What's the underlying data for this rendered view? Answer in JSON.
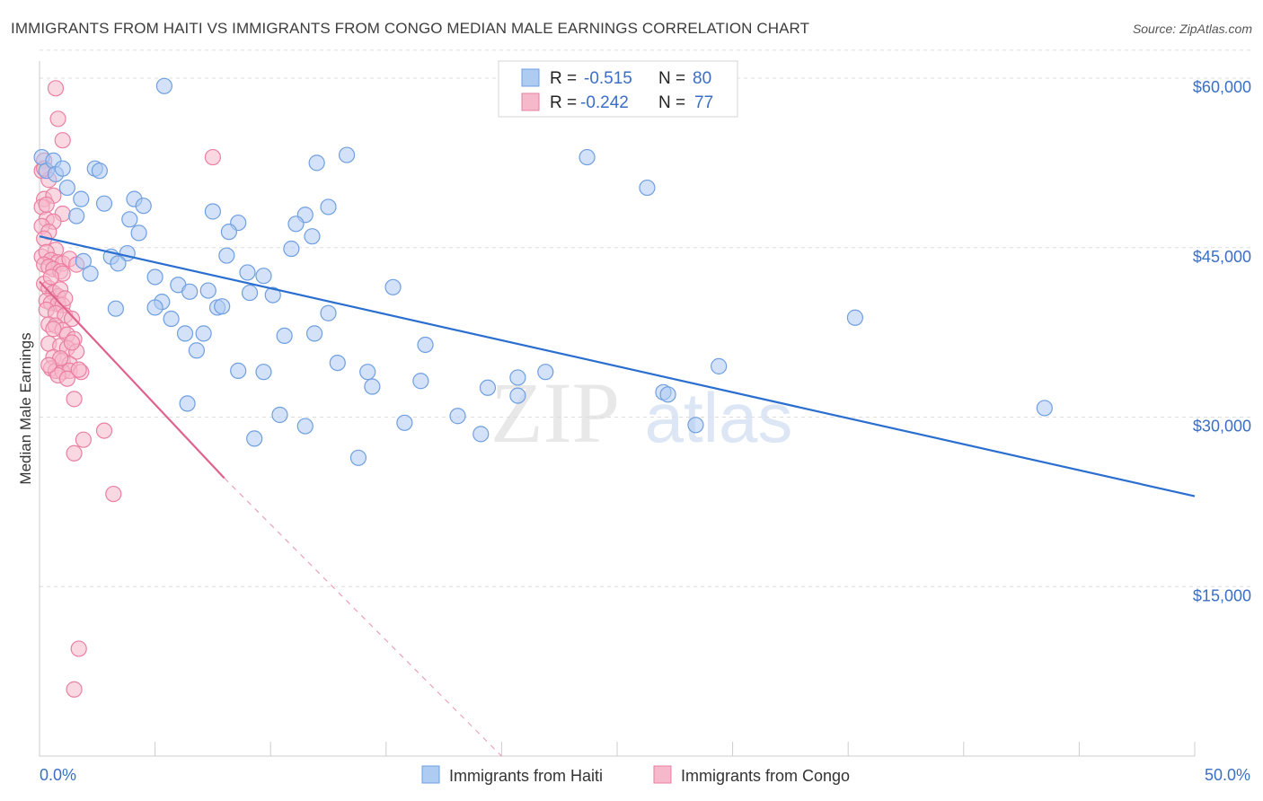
{
  "title": "IMMIGRANTS FROM HAITI VS IMMIGRANTS FROM CONGO MEDIAN MALE EARNINGS CORRELATION CHART",
  "source": "Source: ZipAtlas.com",
  "watermark": {
    "zip": "ZIP",
    "atlas": "atlas"
  },
  "colors": {
    "haiti_fill": "#aecbf2",
    "haiti_stroke": "#6f9fe0",
    "haiti_line": "#2a6fcf",
    "congo_fill": "#f6b8cb",
    "congo_stroke": "#ea7fa2",
    "congo_line": "#e0628c",
    "grid": "#dddddd",
    "axis_text": "#3b6fc4"
  },
  "legend": {
    "rows": [
      {
        "r_label": "R =",
        "r_value": "-0.515",
        "n_label": "N =",
        "n_value": "80"
      },
      {
        "r_label": "R =",
        "r_value": "-0.242",
        "n_label": "N =",
        "n_value": "77"
      }
    ]
  },
  "chart_data": {
    "type": "scatter",
    "title": "IMMIGRANTS FROM HAITI VS IMMIGRANTS FROM CONGO MEDIAN MALE EARNINGS CORRELATION CHART",
    "xlabel": "",
    "ylabel": "Median Male Earnings",
    "xlim": [
      0,
      50
    ],
    "ylim": [
      0,
      62000
    ],
    "x_tick_labels": [
      "0.0%",
      "50.0%"
    ],
    "y_ticks": [
      15000,
      30000,
      45000,
      60000
    ],
    "y_tick_labels": [
      "$15,000",
      "$30,000",
      "$45,000",
      "$60,000"
    ],
    "series": [
      {
        "name": "Immigrants from Haiti",
        "trend": {
          "x": [
            0,
            50
          ],
          "y": [
            46000,
            23000
          ],
          "style": "solid"
        },
        "points": [
          [
            0.1,
            53000
          ],
          [
            0.3,
            51800
          ],
          [
            0.6,
            52700
          ],
          [
            0.7,
            51500
          ],
          [
            1.0,
            52000
          ],
          [
            2.4,
            52000
          ],
          [
            2.6,
            51800
          ],
          [
            5.4,
            59300
          ],
          [
            12.0,
            52500
          ],
          [
            13.3,
            53200
          ],
          [
            23.7,
            53000
          ],
          [
            26.3,
            50300
          ],
          [
            1.2,
            50300
          ],
          [
            1.8,
            49300
          ],
          [
            2.8,
            48900
          ],
          [
            4.1,
            49300
          ],
          [
            4.5,
            48700
          ],
          [
            7.5,
            48200
          ],
          [
            11.5,
            47900
          ],
          [
            12.5,
            48600
          ],
          [
            1.6,
            47800
          ],
          [
            3.9,
            47500
          ],
          [
            8.6,
            47200
          ],
          [
            11.1,
            47100
          ],
          [
            4.3,
            46300
          ],
          [
            8.2,
            46400
          ],
          [
            11.8,
            46000
          ],
          [
            3.8,
            44500
          ],
          [
            8.1,
            44300
          ],
          [
            10.9,
            44900
          ],
          [
            1.9,
            43800
          ],
          [
            3.1,
            44200
          ],
          [
            3.4,
            43600
          ],
          [
            2.2,
            42700
          ],
          [
            9.0,
            42800
          ],
          [
            9.7,
            42500
          ],
          [
            5.0,
            42400
          ],
          [
            6.0,
            41700
          ],
          [
            7.3,
            41200
          ],
          [
            15.3,
            41500
          ],
          [
            6.5,
            41100
          ],
          [
            9.1,
            41000
          ],
          [
            10.1,
            40800
          ],
          [
            5.3,
            40200
          ],
          [
            3.3,
            39600
          ],
          [
            5.0,
            39700
          ],
          [
            7.7,
            39700
          ],
          [
            7.9,
            39800
          ],
          [
            35.3,
            38800
          ],
          [
            12.5,
            39200
          ],
          [
            5.7,
            38700
          ],
          [
            6.3,
            37400
          ],
          [
            7.1,
            37400
          ],
          [
            10.6,
            37200
          ],
          [
            11.9,
            37400
          ],
          [
            16.7,
            36400
          ],
          [
            6.8,
            35900
          ],
          [
            12.9,
            34800
          ],
          [
            8.6,
            34100
          ],
          [
            9.7,
            34000
          ],
          [
            14.2,
            34000
          ],
          [
            20.7,
            33500
          ],
          [
            21.9,
            34000
          ],
          [
            29.4,
            34500
          ],
          [
            16.5,
            33200
          ],
          [
            14.4,
            32700
          ],
          [
            19.4,
            32600
          ],
          [
            20.7,
            31900
          ],
          [
            27.0,
            32200
          ],
          [
            27.2,
            32000
          ],
          [
            6.4,
            31200
          ],
          [
            10.4,
            30200
          ],
          [
            18.1,
            30100
          ],
          [
            43.5,
            30800
          ],
          [
            11.5,
            29200
          ],
          [
            15.8,
            29500
          ],
          [
            28.4,
            29300
          ],
          [
            9.3,
            28100
          ],
          [
            19.1,
            28500
          ],
          [
            13.8,
            26400
          ]
        ]
      },
      {
        "name": "Immigrants from Congo",
        "trend": {
          "x": [
            0,
            8
          ],
          "y": [
            42000,
            24600
          ],
          "style": "solid",
          "extension": {
            "x": [
              8,
              20
            ],
            "y": [
              24600,
              0
            ],
            "style": "dashed"
          }
        },
        "points": [
          [
            0.7,
            59100
          ],
          [
            0.8,
            56400
          ],
          [
            1.0,
            54500
          ],
          [
            7.5,
            53000
          ],
          [
            0.2,
            52700
          ],
          [
            0.1,
            51800
          ],
          [
            0.4,
            51000
          ],
          [
            0.2,
            49300
          ],
          [
            0.6,
            49600
          ],
          [
            0.1,
            48600
          ],
          [
            1.0,
            48000
          ],
          [
            0.3,
            47500
          ],
          [
            0.6,
            47300
          ],
          [
            0.1,
            46900
          ],
          [
            0.4,
            46400
          ],
          [
            0.2,
            45800
          ],
          [
            0.7,
            44800
          ],
          [
            0.1,
            44200
          ],
          [
            0.3,
            44600
          ],
          [
            0.5,
            43900
          ],
          [
            0.8,
            43700
          ],
          [
            1.0,
            43600
          ],
          [
            1.3,
            44000
          ],
          [
            1.6,
            43500
          ],
          [
            0.2,
            43500
          ],
          [
            0.4,
            43300
          ],
          [
            0.6,
            43100
          ],
          [
            0.9,
            42900
          ],
          [
            1.0,
            42700
          ],
          [
            0.2,
            41800
          ],
          [
            0.4,
            41400
          ],
          [
            0.6,
            41000
          ],
          [
            0.8,
            40700
          ],
          [
            0.3,
            40300
          ],
          [
            0.5,
            40100
          ],
          [
            0.8,
            40000
          ],
          [
            1.0,
            39900
          ],
          [
            0.3,
            39500
          ],
          [
            0.7,
            39200
          ],
          [
            1.1,
            39000
          ],
          [
            1.4,
            38700
          ],
          [
            0.4,
            38200
          ],
          [
            0.7,
            38100
          ],
          [
            1.0,
            37700
          ],
          [
            1.2,
            37300
          ],
          [
            1.5,
            36900
          ],
          [
            0.4,
            36500
          ],
          [
            0.9,
            36300
          ],
          [
            1.2,
            36100
          ],
          [
            1.6,
            35800
          ],
          [
            0.6,
            35300
          ],
          [
            1.0,
            35000
          ],
          [
            1.3,
            34700
          ],
          [
            0.5,
            34300
          ],
          [
            0.7,
            34100
          ],
          [
            1.0,
            34000
          ],
          [
            1.3,
            34100
          ],
          [
            1.8,
            34000
          ],
          [
            0.8,
            33700
          ],
          [
            1.2,
            33400
          ],
          [
            1.5,
            31600
          ],
          [
            2.8,
            28800
          ],
          [
            1.9,
            28000
          ],
          [
            1.5,
            26800
          ],
          [
            3.2,
            23200
          ],
          [
            1.7,
            9500
          ],
          [
            1.5,
            5900
          ],
          [
            0.2,
            52000
          ],
          [
            0.3,
            48800
          ],
          [
            0.5,
            42400
          ],
          [
            0.9,
            41300
          ],
          [
            1.1,
            40500
          ],
          [
            0.6,
            37800
          ],
          [
            1.4,
            36600
          ],
          [
            0.9,
            35200
          ],
          [
            0.4,
            34600
          ],
          [
            1.7,
            34200
          ]
        ]
      }
    ]
  }
}
